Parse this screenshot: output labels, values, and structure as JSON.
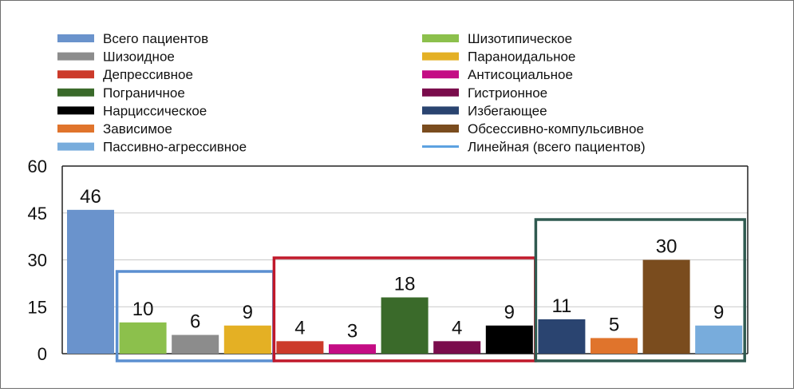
{
  "chart_data": {
    "type": "bar",
    "categories": [
      "Всего пациентов",
      "Шизотипическое",
      "Шизоидное",
      "Параноидальное",
      "Депрессивное",
      "Антисоциальное",
      "Пограничное",
      "Гистрионное",
      "Нарциссическое",
      "Избегающее",
      "Зависимое",
      "Обсессивно-компульсивное",
      "Пассивно-агрессивное"
    ],
    "values": [
      46,
      10,
      6,
      9,
      4,
      3,
      18,
      4,
      9,
      11,
      5,
      30,
      9
    ],
    "colors": [
      "#6a93cc",
      "#8cc04c",
      "#8c8c8c",
      "#e4b024",
      "#cc3a2a",
      "#c40c84",
      "#3a6a2a",
      "#7a0c4c",
      "#000000",
      "#2a4470",
      "#e0742c",
      "#7a4c1e",
      "#78acdc"
    ],
    "ylim": [
      0,
      60
    ],
    "yticks": [
      0,
      15,
      30,
      45,
      60
    ],
    "grid": true,
    "legend": {
      "placement": "top",
      "entries": [
        {
          "label": "Всего пациентов",
          "color": "#6a93cc",
          "kind": "bar"
        },
        {
          "label": "Шизоидное",
          "color": "#8c8c8c",
          "kind": "bar"
        },
        {
          "label": "Депрессивное",
          "color": "#cc3a2a",
          "kind": "bar"
        },
        {
          "label": "Пограничное",
          "color": "#3a6a2a",
          "kind": "bar"
        },
        {
          "label": "Нарциссическое",
          "color": "#000000",
          "kind": "bar"
        },
        {
          "label": "Зависимое",
          "color": "#e0742c",
          "kind": "bar"
        },
        {
          "label": "Пассивно-агрессивное",
          "color": "#78acdc",
          "kind": "bar"
        },
        {
          "label": "Шизотипическое",
          "color": "#8cc04c",
          "kind": "bar"
        },
        {
          "label": "Параноидальное",
          "color": "#e4b024",
          "kind": "bar"
        },
        {
          "label": "Антисоциальное",
          "color": "#c40c84",
          "kind": "bar"
        },
        {
          "label": "Гистрионное",
          "color": "#7a0c4c",
          "kind": "bar"
        },
        {
          "label": "Избегающее",
          "color": "#2a4470",
          "kind": "bar"
        },
        {
          "label": "Обсессивно-компульсивное",
          "color": "#7a4c1e",
          "kind": "bar"
        },
        {
          "label": "Линейная (всего пациентов)",
          "color": "#5aa0e0",
          "kind": "line"
        }
      ]
    },
    "group_boxes": [
      {
        "name": "cluster-a",
        "from": 1,
        "to": 3,
        "color": "#5b8fd0"
      },
      {
        "name": "cluster-b",
        "from": 4,
        "to": 8,
        "color": "#c0182a"
      },
      {
        "name": "cluster-c",
        "from": 9,
        "to": 12,
        "color": "#2f5a50"
      }
    ]
  }
}
